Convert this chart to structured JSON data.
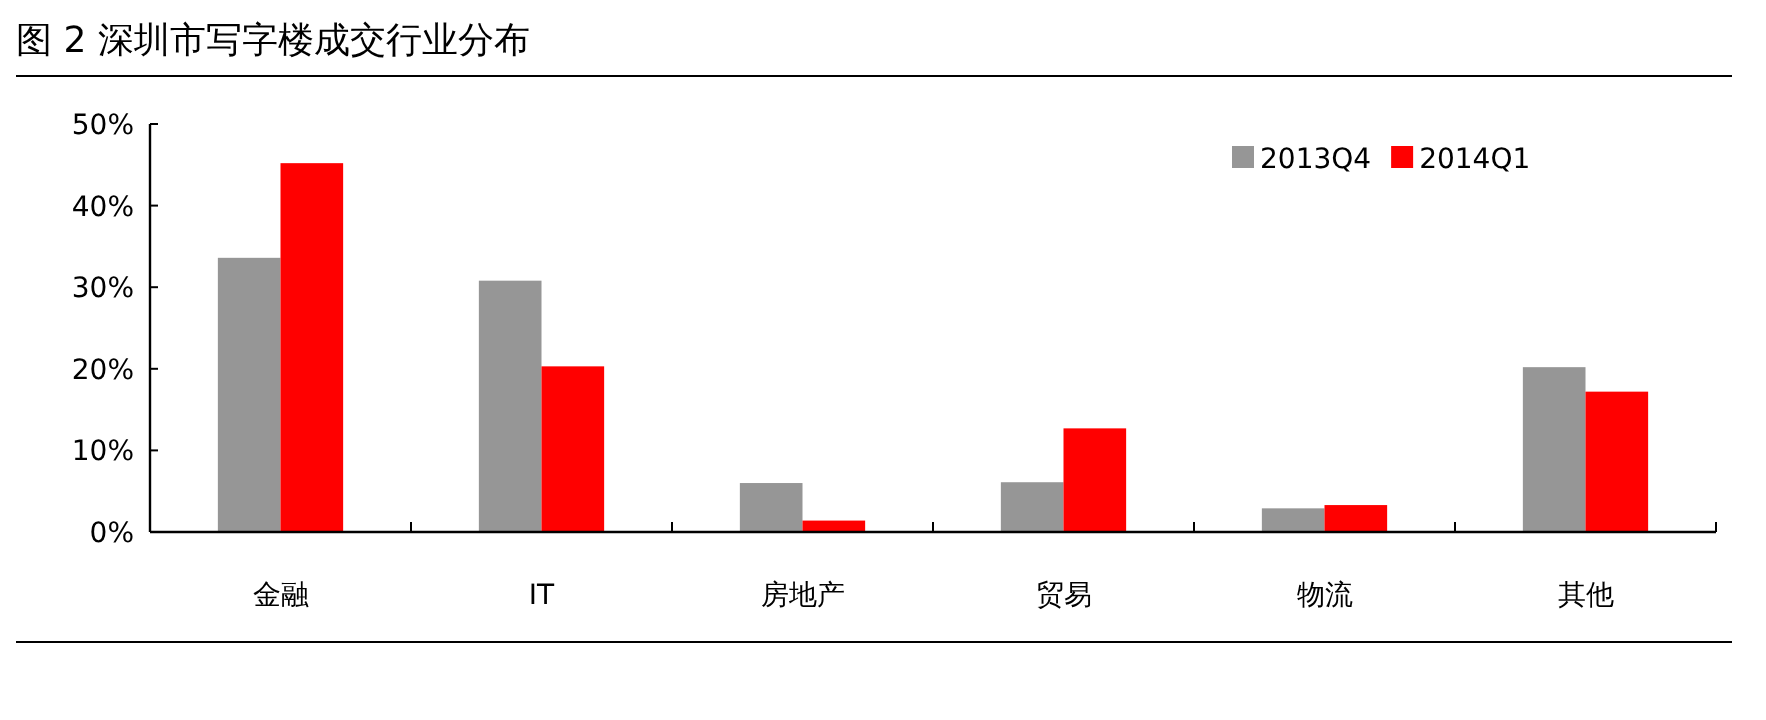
{
  "chart_data": {
    "type": "bar",
    "title": "图 2 深圳市写字楼成交行业分布",
    "categories": [
      "金融",
      "IT",
      "房地产",
      "贸易",
      "物流",
      "其他"
    ],
    "series": [
      {
        "name": "2013Q4",
        "color": "#969696",
        "values": [
          33.6,
          30.8,
          6.0,
          6.1,
          2.9,
          20.2
        ]
      },
      {
        "name": "2014Q1",
        "color": "#ff0000",
        "values": [
          45.2,
          20.3,
          1.4,
          12.7,
          3.3,
          17.2
        ]
      }
    ],
    "ylim": [
      0,
      50
    ],
    "yticks": [
      {
        "value": 0,
        "label": "0%"
      },
      {
        "value": 10,
        "label": "10%"
      },
      {
        "value": 20,
        "label": "20%"
      },
      {
        "value": 30,
        "label": "30%"
      },
      {
        "value": 40,
        "label": "40%"
      },
      {
        "value": 50,
        "label": "50%"
      }
    ],
    "grid": false,
    "legend": "top right"
  }
}
